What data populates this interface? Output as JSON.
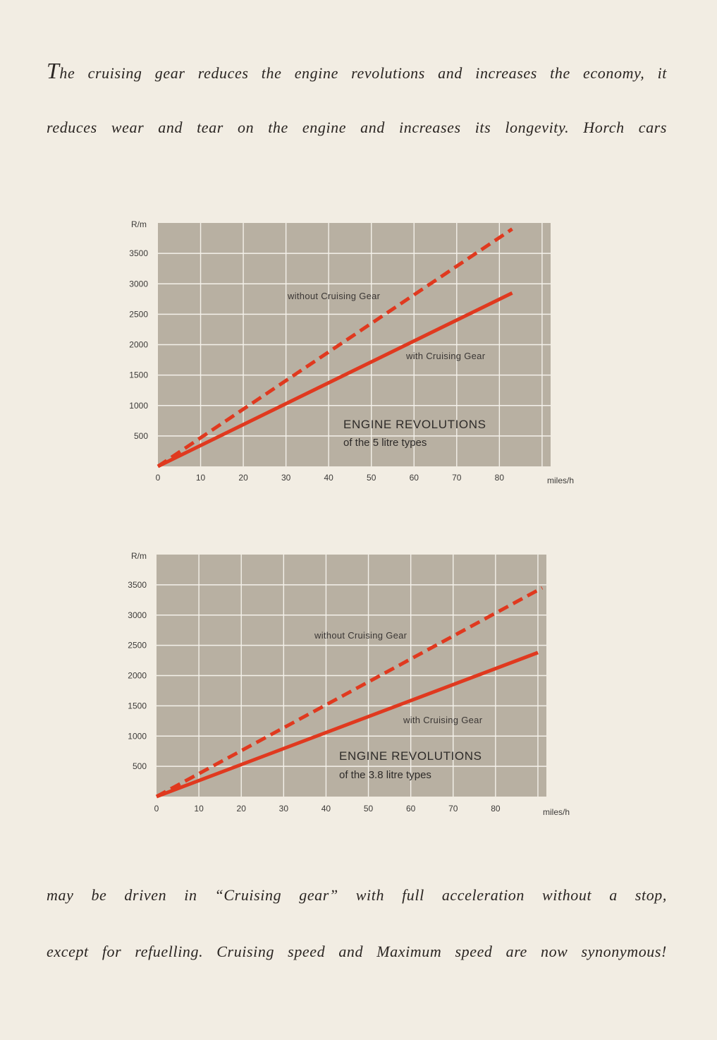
{
  "text": {
    "line1_cap": "T",
    "line1_rest": "he cruising gear reduces the engine revolutions and increases the economy, it",
    "line2": "reduces wear and tear on the engine and increases its longevity. Horch cars",
    "line3": "may be driven in “Cruising gear” with full acceleration without a stop,",
    "line4": "except for refuelling. Cruising speed and Maximum speed are now synonymous!"
  },
  "colors": {
    "plot_bg": "#b8b0a2",
    "grid": "#f4f1ea",
    "line": "#e0391f",
    "page": "#f2ede3"
  },
  "chart_data": [
    {
      "type": "line",
      "title": "ENGINE REVOLUTIONS",
      "subtitle": "of the 5 litre types",
      "ylabel": "R/m",
      "xlabel": "miles/h",
      "xlim": [
        0,
        92
      ],
      "ylim": [
        0,
        4000
      ],
      "xticks": [
        "0",
        "10",
        "20",
        "30",
        "40",
        "50",
        "60",
        "70",
        "80"
      ],
      "yticks": [
        "500",
        "1000",
        "1500",
        "2000",
        "2500",
        "3000",
        "3500"
      ],
      "grid": true,
      "series": [
        {
          "name": "without Cruising Gear",
          "style": "dashed",
          "x": [
            0,
            83
          ],
          "y": [
            0,
            3900
          ]
        },
        {
          "name": "with Cruising Gear",
          "style": "solid",
          "x": [
            0,
            83
          ],
          "y": [
            0,
            2850
          ]
        }
      ]
    },
    {
      "type": "line",
      "title": "ENGINE REVOLUTIONS",
      "subtitle": "of the 3.8 litre types",
      "ylabel": "R/m",
      "xlabel": "miles/h",
      "xlim": [
        0,
        92
      ],
      "ylim": [
        0,
        4000
      ],
      "xticks": [
        "0",
        "10",
        "20",
        "30",
        "40",
        "50",
        "60",
        "70",
        "80"
      ],
      "yticks": [
        "500",
        "1000",
        "1500",
        "2000",
        "2500",
        "3000",
        "3500"
      ],
      "grid": true,
      "series": [
        {
          "name": "without Cruising Gear",
          "style": "dashed",
          "x": [
            0,
            91
          ],
          "y": [
            0,
            3450
          ]
        },
        {
          "name": "with Cruising Gear",
          "style": "solid",
          "x": [
            0,
            90
          ],
          "y": [
            0,
            2380
          ]
        }
      ]
    }
  ]
}
